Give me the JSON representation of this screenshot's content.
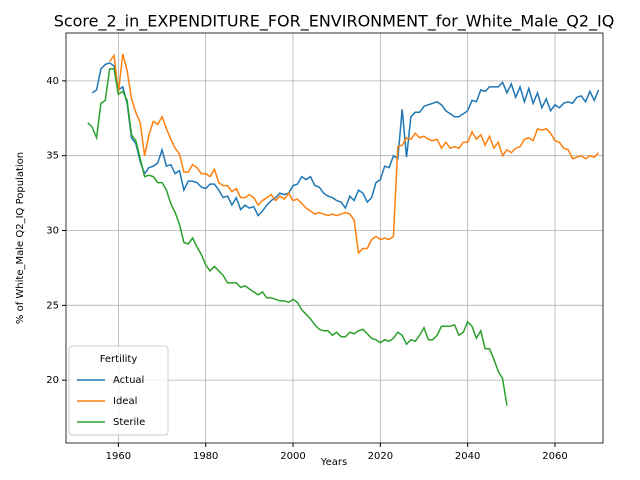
{
  "chart_data": {
    "type": "line",
    "title": "Score_2_in_EXPENDITURE_FOR_ENVIRONMENT_for_White_Male_Q2_IQ",
    "xlabel": "Years",
    "ylabel": "% of White_Male Q2_IQ Population",
    "legend_title": "Fertility",
    "legend": "lower left",
    "grid": true,
    "xlim": [
      1948,
      2071
    ],
    "ylim": [
      15.8,
      43.2
    ],
    "xticks": [
      1960,
      1980,
      2000,
      2020,
      2040,
      2060
    ],
    "yticks": [
      20,
      25,
      30,
      35,
      40
    ],
    "x": [
      1953,
      1954,
      1955,
      1956,
      1957,
      1958,
      1959,
      1960,
      1961,
      1962,
      1963,
      1964,
      1965,
      1966,
      1967,
      1968,
      1969,
      1970,
      1971,
      1972,
      1973,
      1974,
      1975,
      1976,
      1977,
      1978,
      1979,
      1980,
      1981,
      1982,
      1983,
      1984,
      1985,
      1986,
      1987,
      1988,
      1989,
      1990,
      1991,
      1992,
      1993,
      1994,
      1995,
      1996,
      1997,
      1998,
      1999,
      2000,
      2001,
      2002,
      2003,
      2004,
      2005,
      2006,
      2007,
      2008,
      2009,
      2010,
      2011,
      2012,
      2013,
      2014,
      2015,
      2016,
      2017,
      2018,
      2019,
      2020,
      2021,
      2022,
      2023,
      2024,
      2025,
      2026,
      2027,
      2028,
      2029,
      2030,
      2031,
      2032,
      2033,
      2034,
      2035,
      2036,
      2037,
      2038,
      2039,
      2040,
      2041,
      2042,
      2043,
      2044,
      2045,
      2046,
      2047,
      2048,
      2049,
      2050,
      2051,
      2052,
      2053,
      2054,
      2055,
      2056,
      2057,
      2058,
      2059,
      2060,
      2061,
      2062,
      2063,
      2064,
      2065,
      2066,
      2067,
      2068,
      2069,
      2070
    ],
    "series": [
      {
        "name": "Actual",
        "color": "#1f77b4",
        "values": [
          null,
          39.2,
          39.4,
          40.8,
          41.1,
          41.2,
          41.0,
          39.4,
          39.6,
          38.5,
          36.2,
          35.8,
          34.6,
          33.8,
          34.2,
          34.3,
          34.5,
          35.4,
          34.3,
          34.4,
          33.8,
          34.0,
          32.7,
          33.3,
          33.3,
          33.2,
          32.9,
          32.8,
          33.1,
          33.1,
          32.7,
          32.2,
          32.3,
          31.7,
          32.2,
          31.4,
          31.7,
          31.5,
          31.6,
          31.0,
          31.3,
          31.7,
          32.0,
          32.2,
          32.5,
          32.4,
          32.5,
          33.0,
          33.1,
          33.6,
          33.4,
          33.6,
          33.0,
          32.9,
          32.5,
          32.3,
          32.2,
          32.0,
          31.9,
          31.5,
          32.3,
          32.0,
          32.7,
          32.5,
          31.9,
          32.2,
          33.2,
          33.4,
          34.3,
          34.2,
          35.0,
          34.8,
          38.1,
          34.9,
          37.6,
          37.9,
          37.9,
          38.3,
          38.4,
          38.5,
          38.6,
          38.4,
          38.0,
          37.8,
          37.6,
          37.6,
          37.8,
          38.0,
          38.7,
          38.6,
          39.4,
          39.3,
          39.6,
          39.6,
          39.6,
          39.9,
          39.2,
          39.8,
          38.9,
          39.6,
          38.6,
          39.5,
          38.5,
          39.2,
          38.2,
          38.8,
          38.0,
          38.4,
          38.2,
          38.5,
          38.6,
          38.5,
          38.9,
          39.0,
          38.6,
          39.3,
          38.7,
          39.4
        ]
      },
      {
        "name": "Ideal",
        "color": "#ff7f0e",
        "values": [
          null,
          null,
          null,
          null,
          null,
          41.3,
          41.7,
          39.2,
          41.8,
          40.7,
          38.8,
          37.9,
          37.2,
          35.0,
          36.4,
          37.3,
          37.1,
          37.6,
          36.8,
          36.1,
          35.5,
          35.1,
          33.9,
          33.9,
          34.4,
          34.2,
          33.8,
          33.8,
          33.6,
          34.1,
          33.2,
          33.0,
          33.0,
          32.6,
          32.8,
          32.2,
          32.2,
          32.4,
          32.2,
          31.7,
          32.0,
          32.2,
          32.4,
          32.0,
          32.3,
          32.1,
          32.5,
          32.0,
          32.1,
          31.8,
          31.5,
          31.3,
          31.1,
          31.2,
          31.1,
          31.0,
          31.1,
          31.0,
          31.1,
          31.2,
          31.1,
          30.7,
          28.5,
          28.8,
          28.8,
          29.4,
          29.6,
          29.4,
          29.5,
          29.4,
          29.6,
          35.6,
          35.7,
          36.2,
          36.1,
          36.5,
          36.2,
          36.3,
          36.1,
          36.0,
          36.1,
          35.5,
          35.9,
          35.5,
          35.6,
          35.5,
          35.9,
          35.9,
          36.6,
          36.1,
          36.4,
          35.7,
          36.3,
          35.5,
          35.9,
          35.0,
          35.4,
          35.2,
          35.5,
          35.6,
          36.1,
          36.2,
          36.0,
          36.8,
          36.7,
          36.8,
          36.5,
          36.0,
          35.9,
          35.5,
          35.4,
          34.8,
          34.9,
          35.0,
          34.8,
          35.0,
          34.9,
          35.2
        ]
      },
      {
        "name": "Sterile",
        "color": "#2ca02c",
        "values": [
          37.2,
          36.9,
          36.2,
          38.5,
          38.7,
          40.8,
          40.8,
          39.1,
          39.3,
          38.7,
          36.4,
          36.0,
          34.8,
          33.6,
          33.7,
          33.6,
          33.2,
          33.2,
          32.7,
          31.8,
          31.2,
          30.4,
          29.2,
          29.1,
          29.5,
          28.9,
          28.4,
          27.7,
          27.3,
          27.6,
          27.3,
          27.0,
          26.5,
          26.5,
          26.5,
          26.2,
          26.3,
          26.1,
          25.9,
          25.7,
          25.9,
          25.5,
          25.5,
          25.4,
          25.3,
          25.3,
          25.2,
          25.4,
          25.2,
          24.7,
          24.4,
          24.1,
          23.7,
          23.4,
          23.3,
          23.3,
          23.0,
          23.2,
          22.9,
          22.9,
          23.2,
          23.1,
          23.3,
          23.4,
          23.1,
          22.8,
          22.7,
          22.5,
          22.7,
          22.6,
          22.8,
          23.2,
          23.0,
          22.4,
          22.7,
          22.6,
          23.0,
          23.5,
          22.7,
          22.7,
          23.0,
          23.6,
          23.6,
          23.6,
          23.7,
          23.0,
          23.2,
          23.9,
          23.6,
          22.8,
          23.3,
          22.1,
          22.1,
          21.4,
          20.6,
          20.1,
          18.3,
          null,
          null,
          null,
          null,
          null,
          null,
          null,
          null,
          null,
          null,
          null,
          null,
          null,
          null,
          null,
          null,
          null,
          null,
          null,
          null,
          null
        ]
      }
    ]
  }
}
